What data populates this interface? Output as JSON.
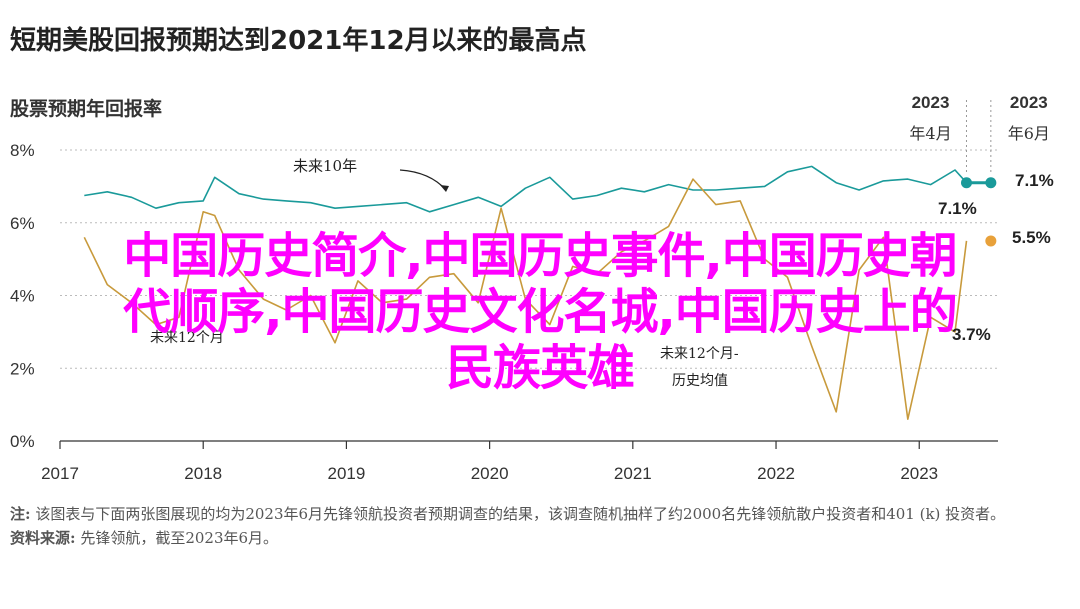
{
  "title": "短期美股回报预期达到2021年12月以来的最高点",
  "subtitle": "股票预期年回报率",
  "chart_data": {
    "type": "line",
    "ylim": [
      0,
      8
    ],
    "y_ticks": [
      "0%",
      "2%",
      "4%",
      "6%",
      "8%"
    ],
    "x_ticks": [
      "2017",
      "2018",
      "2019",
      "2020",
      "2021",
      "2022",
      "2023"
    ],
    "xlim": [
      2017.0,
      2023.55
    ],
    "series": [
      {
        "name": "未来10年",
        "color": "#1a9a9a",
        "x": [
          2017.17,
          2017.33,
          2017.5,
          2017.67,
          2017.83,
          2018.0,
          2018.08,
          2018.25,
          2018.42,
          2018.58,
          2018.75,
          2018.92,
          2019.08,
          2019.25,
          2019.42,
          2019.58,
          2019.75,
          2019.92,
          2020.08,
          2020.25,
          2020.42,
          2020.58,
          2020.75,
          2020.92,
          2021.08,
          2021.25,
          2021.42,
          2021.58,
          2021.75,
          2021.92,
          2022.08,
          2022.25,
          2022.42,
          2022.58,
          2022.75,
          2022.92,
          2023.08,
          2023.25,
          2023.33
        ],
        "y": [
          6.75,
          6.85,
          6.7,
          6.4,
          6.55,
          6.6,
          7.25,
          6.8,
          6.65,
          6.6,
          6.55,
          6.4,
          6.45,
          6.5,
          6.55,
          6.3,
          6.5,
          6.7,
          6.45,
          6.95,
          7.25,
          6.65,
          6.75,
          6.95,
          6.85,
          7.05,
          6.9,
          6.9,
          6.95,
          7.0,
          7.4,
          7.55,
          7.1,
          6.9,
          7.15,
          7.2,
          7.05,
          7.45,
          7.1
        ]
      },
      {
        "name": "未来12个月",
        "color": "#c89a3c",
        "x": [
          2017.17,
          2017.33,
          2017.5,
          2017.67,
          2017.83,
          2018.0,
          2018.08,
          2018.25,
          2018.42,
          2018.58,
          2018.75,
          2018.92,
          2019.08,
          2019.25,
          2019.42,
          2019.58,
          2019.75,
          2019.92,
          2020.08,
          2020.25,
          2020.42,
          2020.58,
          2020.75,
          2020.92,
          2021.08,
          2021.25,
          2021.42,
          2021.58,
          2021.75,
          2021.92,
          2022.08,
          2022.25,
          2022.42,
          2022.58,
          2022.75,
          2022.92,
          2023.08,
          2023.25,
          2023.33
        ],
        "y": [
          5.6,
          4.3,
          3.8,
          3.2,
          3.4,
          6.3,
          6.2,
          4.7,
          3.9,
          3.6,
          4.0,
          2.7,
          4.4,
          3.8,
          3.9,
          4.5,
          4.6,
          3.8,
          6.4,
          3.9,
          3.2,
          4.8,
          4.6,
          5.2,
          5.5,
          5.9,
          7.2,
          6.5,
          6.6,
          5.0,
          4.5,
          2.6,
          0.8,
          4.7,
          5.6,
          0.6,
          3.4,
          3.0,
          5.5
        ]
      }
    ],
    "annotations": {
      "ten_year_label": "未来10年",
      "twelve_month_label": "未来12个月",
      "hist_avg_label_line1": "未来12个月-",
      "hist_avg_label_line2": "历史均值",
      "apr_2023_value": "7.1%",
      "jun_2023_value": "7.1%",
      "jun_2023_12m_value": "5.5%",
      "hist_avg_value": "3.7%"
    },
    "periods": [
      {
        "year": "2023",
        "month": "年4月",
        "x": 2023.33
      },
      {
        "year": "2023",
        "month": "年6月",
        "x": 2023.5
      }
    ],
    "endpoints": {
      "ten_year": {
        "x": [
          2023.33,
          2023.5
        ],
        "y": [
          7.1,
          7.1
        ]
      },
      "twelve_month": {
        "x": [
          2023.5
        ],
        "y": [
          5.5
        ]
      }
    }
  },
  "overlay": {
    "line1": "中国历史简介,中国历史事件,中国历史朝",
    "line2": "代顺序,中国历史文化名城,中国历史上的",
    "line3": "民族英雄"
  },
  "note": {
    "label": "注:",
    "text": " 该图表与下面两张图展现的均为2023年6月先锋领航投资者预期调查的结果，该调查随机抽样了约2000名先锋领航散户投资者和401 (k) 投资者。",
    "source_label": "资料来源:",
    "source_text": " 先锋领航，截至2023年6月。"
  }
}
